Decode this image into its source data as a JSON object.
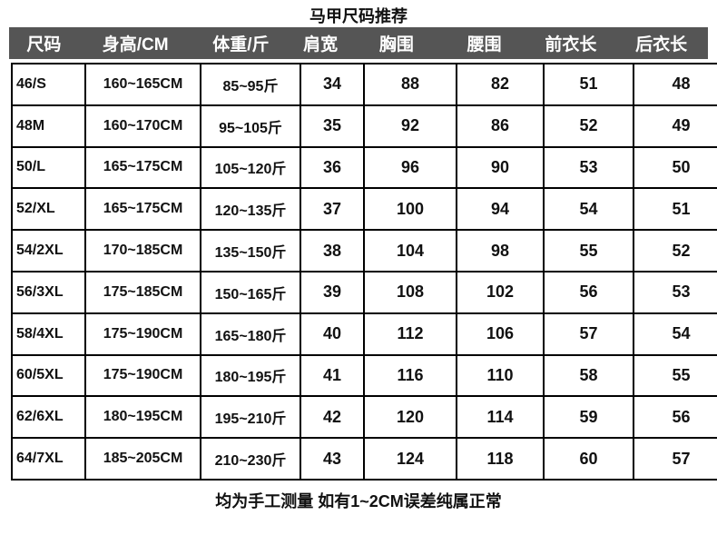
{
  "title": "马甲尺码推荐",
  "headers": [
    "尺码",
    "身高/CM",
    "体重/斤",
    "肩宽",
    "胸围",
    "腰围",
    "前衣长",
    "后衣长"
  ],
  "rows": [
    [
      "46/S",
      "160~165CM",
      "85~95斤",
      "34",
      "88",
      "82",
      "51",
      "48"
    ],
    [
      "48M",
      "160~170CM",
      "95~105斤",
      "35",
      "92",
      "86",
      "52",
      "49"
    ],
    [
      "50/L",
      "165~175CM",
      "105~120斤",
      "36",
      "96",
      "90",
      "53",
      "50"
    ],
    [
      "52/XL",
      "165~175CM",
      "120~135斤",
      "37",
      "100",
      "94",
      "54",
      "51"
    ],
    [
      "54/2XL",
      "170~185CM",
      "135~150斤",
      "38",
      "104",
      "98",
      "55",
      "52"
    ],
    [
      "56/3XL",
      "175~185CM",
      "150~165斤",
      "39",
      "108",
      "102",
      "56",
      "53"
    ],
    [
      "58/4XL",
      "175~190CM",
      "165~180斤",
      "40",
      "112",
      "106",
      "57",
      "54"
    ],
    [
      "60/5XL",
      "175~190CM",
      "180~195斤",
      "41",
      "116",
      "110",
      "58",
      "55"
    ],
    [
      "62/6XL",
      "180~195CM",
      "195~210斤",
      "42",
      "120",
      "114",
      "59",
      "56"
    ],
    [
      "64/7XL",
      "185~205CM",
      "210~230斤",
      "43",
      "124",
      "118",
      "60",
      "57"
    ]
  ],
  "footer": "均为手工测量  如有1~2CM误差纯属正常",
  "colors": {
    "header_bg": "#555555"
  }
}
